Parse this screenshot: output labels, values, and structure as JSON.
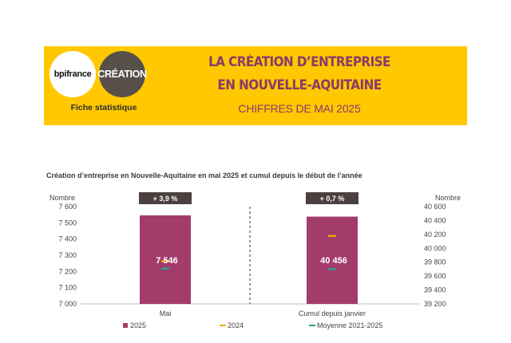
{
  "header": {
    "logo_bpi": "bpifrance",
    "logo_creation": "CRÉATION",
    "fiche": "Fiche statistique",
    "title_line1": "LA CRÉATION D’ENTREPRISE",
    "title_line2": "EN NOUVELLE-AQUITAINE",
    "subtitle": "CHIFFRES DE MAI 2025"
  },
  "colors": {
    "banner": "#ffc800",
    "title": "#8a3a6a",
    "bar_2025": "#a33c6b",
    "marker_2024": "#f5a800",
    "marker_avg": "#2a9d8f",
    "badge": "#4a4040"
  },
  "chart_data": {
    "type": "bar",
    "title": "Création d’entreprise en Nouvelle-Aquitaine en mai 2025 et cumul depuis le début de l’année",
    "left_axis": {
      "label": "Nombre",
      "range": [
        7000,
        7600
      ],
      "ticks": [
        "7 600",
        "7 500",
        "7 400",
        "7 300",
        "7 200",
        "7 100",
        "7 000"
      ]
    },
    "right_axis": {
      "label": "Nombre",
      "range": [
        39200,
        40600
      ],
      "ticks": [
        "40 600",
        "40 400",
        "40 200",
        "40 000",
        "39 800",
        "39 600",
        "39 400",
        "39 200"
      ]
    },
    "categories": [
      "Mai",
      "Cumul depuis janvier"
    ],
    "series": [
      {
        "name": "2025",
        "kind": "bar",
        "values": [
          7546,
          40456
        ]
      },
      {
        "name": "2024",
        "kind": "marker",
        "values": [
          7263,
          40178
        ]
      },
      {
        "name": "Moyenne 2021-2025",
        "kind": "marker",
        "values": [
          7217,
          39700
        ]
      }
    ],
    "value_labels": [
      "7 546",
      "40 456"
    ],
    "change_badges": [
      "+ 3,9 %",
      "+ 0,7 %"
    ],
    "legend_position": "bottom",
    "grid": false
  }
}
